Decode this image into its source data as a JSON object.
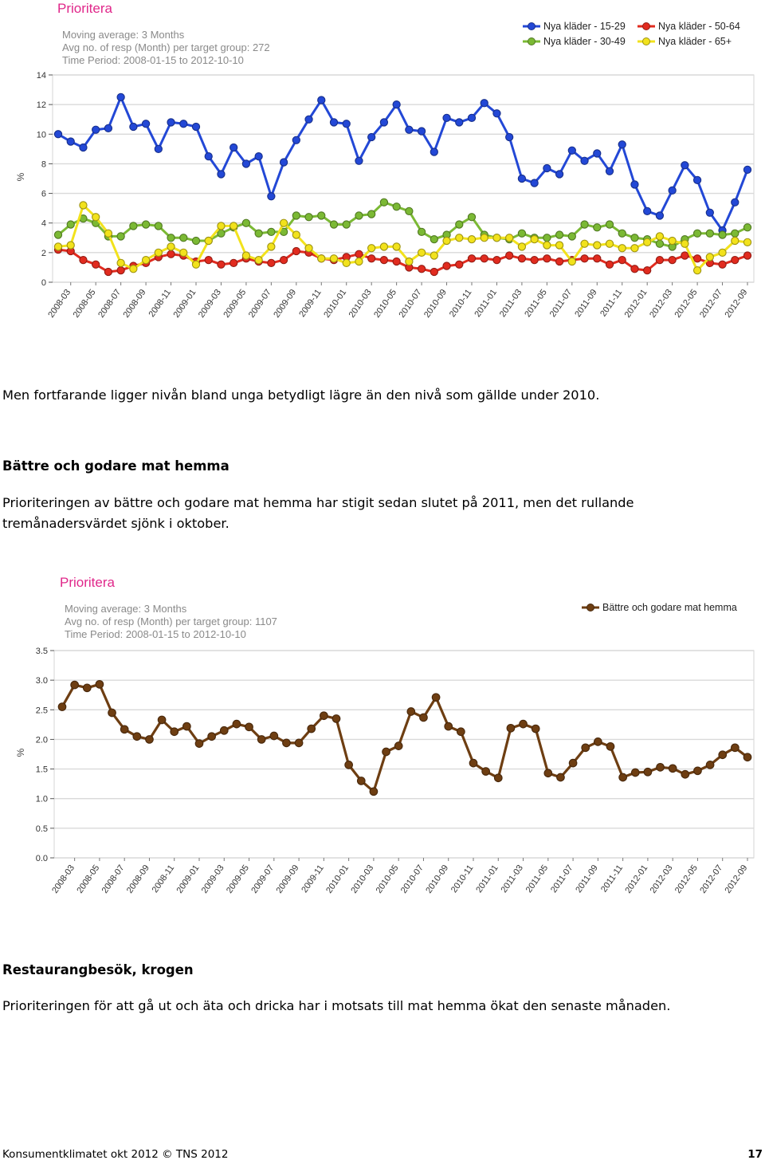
{
  "text": {
    "para1": "Men fortfarande ligger nivån bland unga betydligt lägre än den nivå som gällde under 2010.",
    "heading1": "Bättre och godare mat hemma",
    "para2_line1": "Prioriteringen av bättre och godare mat hemma har stigit sedan slutet på 2011, men det rullande",
    "para2_line2": "tremånadersvärdet sjönk i oktober.",
    "heading2": "Restaurangbesök, krogen",
    "para3": "Prioriteringen för att gå ut och äta och dricka har i motsats till mat hemma ökat den senaste månaden."
  },
  "footer": {
    "left": "Konsumentklimatet okt 2012 © TNS 2012",
    "page_number": "17"
  },
  "chart_data": [
    {
      "type": "line",
      "title": "Prioritera",
      "info": [
        "Moving average: 3 Months",
        "Avg no. of resp (Month) per target group: 272",
        "Time Period: 2008-01-15 to 2012-10-10"
      ],
      "ylabel": "%",
      "ylim": [
        0,
        14
      ],
      "yticks": [
        0,
        2,
        4,
        6,
        8,
        10,
        12,
        14
      ],
      "grid": true,
      "legend_position": "top-right",
      "x_tick_labels": [
        "2008-03",
        "2008-05",
        "2008-07",
        "2008-09",
        "2008-11",
        "2009-01",
        "2009-03",
        "2009-05",
        "2009-07",
        "2009-09",
        "2009-11",
        "2010-01",
        "2010-03",
        "2010-05",
        "2010-07",
        "2010-09",
        "2010-11",
        "2011-01",
        "2011-03",
        "2011-05",
        "2011-07",
        "2011-09",
        "2011-11",
        "2012-01",
        "2012-03",
        "2012-05",
        "2012-07",
        "2012-09"
      ],
      "x_tick_every": 2,
      "series": [
        {
          "name": "Nya kläder - 15-29",
          "color": "#2348d6",
          "values": [
            10.0,
            9.5,
            9.1,
            10.3,
            10.4,
            12.5,
            10.5,
            10.7,
            9.0,
            10.8,
            10.7,
            10.5,
            8.5,
            7.3,
            9.1,
            8.0,
            8.5,
            5.8,
            8.1,
            9.6,
            11.0,
            12.3,
            10.8,
            10.7,
            8.2,
            9.8,
            10.8,
            12.0,
            10.3,
            10.2,
            8.8,
            11.1,
            10.8,
            11.1,
            12.1,
            11.4,
            9.8,
            7.0,
            6.7,
            7.7,
            7.3,
            8.9,
            8.2,
            8.7,
            7.5,
            9.3,
            6.6,
            4.8,
            4.5,
            6.2,
            7.9,
            6.9,
            4.7,
            3.5,
            5.4,
            7.6
          ]
        },
        {
          "name": "Nya kläder - 50-64",
          "color": "#e12b1f",
          "values": [
            2.2,
            2.1,
            1.5,
            1.2,
            0.7,
            0.8,
            1.1,
            1.3,
            1.7,
            1.9,
            1.8,
            1.4,
            1.5,
            1.2,
            1.3,
            1.6,
            1.4,
            1.3,
            1.5,
            2.1,
            2.0,
            1.6,
            1.5,
            1.7,
            1.9,
            1.6,
            1.5,
            1.4,
            1.0,
            0.9,
            0.7,
            1.1,
            1.2,
            1.6,
            1.6,
            1.5,
            1.8,
            1.6,
            1.5,
            1.6,
            1.4,
            1.5,
            1.6,
            1.6,
            1.2,
            1.5,
            0.9,
            0.8,
            1.5,
            1.5,
            1.8,
            1.6,
            1.3,
            1.2,
            1.5,
            1.8
          ]
        },
        {
          "name": "Nya kläder - 30-49",
          "color": "#7bb934",
          "values": [
            3.2,
            3.9,
            4.3,
            4.0,
            3.1,
            3.1,
            3.8,
            3.9,
            3.8,
            3.0,
            3.0,
            2.8,
            2.8,
            3.3,
            3.7,
            4.0,
            3.3,
            3.4,
            3.4,
            4.5,
            4.4,
            4.5,
            3.9,
            3.9,
            4.5,
            4.6,
            5.4,
            5.1,
            4.8,
            3.4,
            2.9,
            3.2,
            3.9,
            4.4,
            3.2,
            3.0,
            2.9,
            3.3,
            3.0,
            3.0,
            3.2,
            3.1,
            3.9,
            3.7,
            3.9,
            3.3,
            3.0,
            2.9,
            2.6,
            2.4,
            2.9,
            3.3,
            3.3,
            3.2,
            3.3,
            3.7
          ]
        },
        {
          "name": "Nya kläder - 65+",
          "color": "#f2e21c",
          "values": [
            2.4,
            2.5,
            5.2,
            4.4,
            3.3,
            1.3,
            0.9,
            1.5,
            2.0,
            2.4,
            2.0,
            1.2,
            2.8,
            3.8,
            3.8,
            1.8,
            1.5,
            2.4,
            4.0,
            3.2,
            2.3,
            1.6,
            1.6,
            1.3,
            1.4,
            2.3,
            2.4,
            2.4,
            1.4,
            2.0,
            1.8,
            2.8,
            3.0,
            2.9,
            3.0,
            3.0,
            3.0,
            2.4,
            2.9,
            2.5,
            2.5,
            1.4,
            2.6,
            2.5,
            2.6,
            2.3,
            2.3,
            2.7,
            3.1,
            2.8,
            2.6,
            0.8,
            1.7,
            2.0,
            2.8,
            2.7
          ]
        }
      ]
    },
    {
      "type": "line",
      "title": "Prioritera",
      "info": [
        "Moving average: 3 Months",
        "Avg no. of resp (Month) per target group: 1107",
        "Time Period: 2008-01-15 to 2012-10-10"
      ],
      "ylabel": "%",
      "ylim": [
        0,
        3.5
      ],
      "yticks": [
        "0.0",
        "0.5",
        "1.0",
        "1.5",
        "2.0",
        "2.5",
        "3.0",
        "3.5"
      ],
      "grid": true,
      "legend_position": "top-right",
      "x_tick_labels": [
        "2008-03",
        "2008-05",
        "2008-07",
        "2008-09",
        "2008-11",
        "2009-01",
        "2009-03",
        "2009-05",
        "2009-07",
        "2009-09",
        "2009-11",
        "2010-01",
        "2010-03",
        "2010-05",
        "2010-07",
        "2010-09",
        "2010-11",
        "2011-01",
        "2011-03",
        "2011-05",
        "2011-07",
        "2011-09",
        "2011-11",
        "2012-01",
        "2012-03",
        "2012-05",
        "2012-07",
        "2012-09"
      ],
      "x_tick_every": 2,
      "series": [
        {
          "name": "Bättre och godare mat hemma",
          "color": "#6e3e12",
          "values": [
            2.55,
            2.92,
            2.87,
            2.93,
            2.45,
            2.17,
            2.05,
            2.0,
            2.33,
            2.13,
            2.22,
            1.93,
            2.05,
            2.15,
            2.26,
            2.21,
            2.0,
            2.06,
            1.94,
            1.94,
            2.18,
            2.4,
            2.35,
            1.57,
            1.3,
            1.12,
            1.79,
            1.89,
            2.47,
            2.37,
            2.71,
            2.22,
            2.13,
            1.6,
            1.46,
            1.35,
            2.19,
            2.26,
            2.18,
            1.43,
            1.36,
            1.6,
            1.86,
            1.96,
            1.88,
            1.36,
            1.44,
            1.45,
            1.53,
            1.51,
            1.41,
            1.47,
            1.57,
            1.74,
            1.86,
            1.7
          ]
        }
      ]
    }
  ]
}
